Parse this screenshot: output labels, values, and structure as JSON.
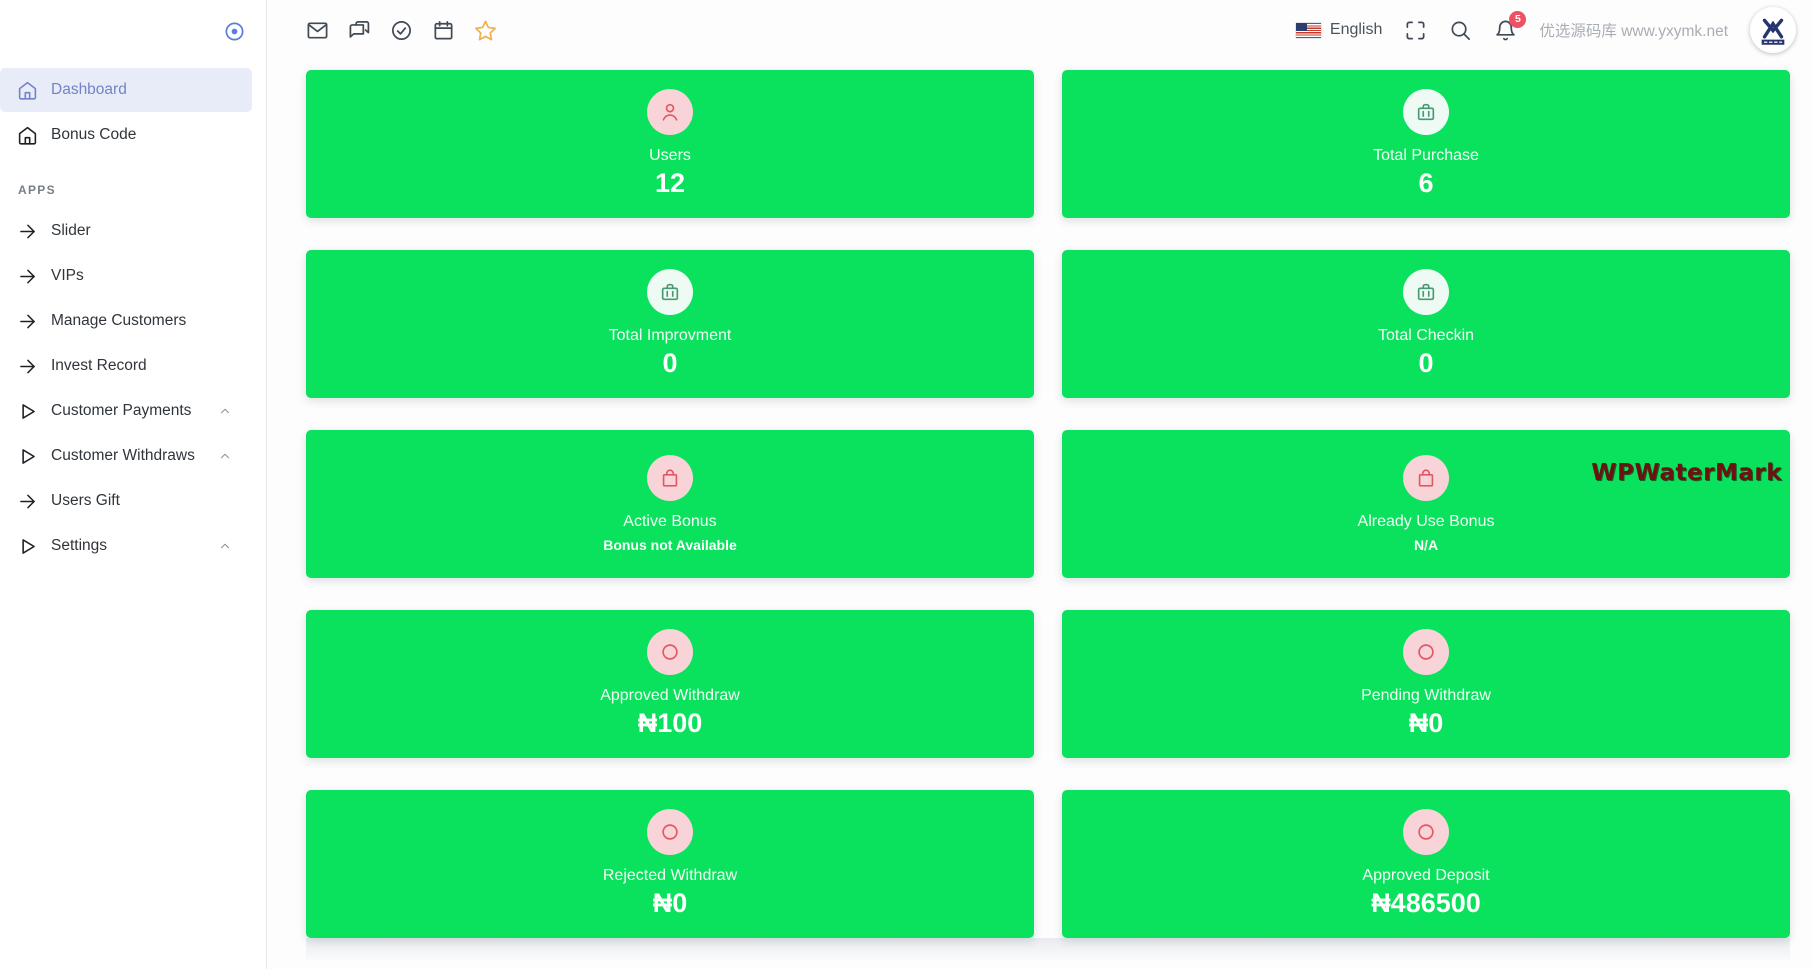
{
  "sidebar": {
    "toggle_icon": "circle-dot-icon",
    "items": [
      {
        "type": "link",
        "label": "Dashboard",
        "icon": "home",
        "active": true
      },
      {
        "type": "link",
        "label": "Bonus Code",
        "icon": "home"
      },
      {
        "type": "section",
        "label": "APPS"
      },
      {
        "type": "link",
        "label": "Slider",
        "icon": "arrow-right"
      },
      {
        "type": "link",
        "label": "VIPs",
        "icon": "arrow-right"
      },
      {
        "type": "link",
        "label": "Manage Customers",
        "icon": "arrow-right"
      },
      {
        "type": "link",
        "label": "Invest Record",
        "icon": "arrow-right"
      },
      {
        "type": "link",
        "label": "Customer Payments",
        "icon": "play",
        "chevron": true
      },
      {
        "type": "link",
        "label": "Customer Withdraws",
        "icon": "play",
        "chevron": true
      },
      {
        "type": "link",
        "label": "Users Gift",
        "icon": "arrow-right"
      },
      {
        "type": "link",
        "label": "Settings",
        "icon": "play",
        "chevron": true
      }
    ]
  },
  "header": {
    "left_icons": [
      {
        "name": "mail-icon"
      },
      {
        "name": "chat-icon"
      },
      {
        "name": "check-circle-icon"
      },
      {
        "name": "calendar-icon"
      },
      {
        "name": "star-icon",
        "accent": "orange"
      }
    ],
    "language": {
      "label": "English",
      "flag": "us-flag-icon"
    },
    "right_icons": [
      {
        "name": "fullscreen-icon"
      },
      {
        "name": "search-icon"
      },
      {
        "name": "bell-icon",
        "badge": true
      }
    ],
    "notification_count": "5",
    "site_note": "优选源码库 www.yxymk.net",
    "avatar_logo": "yx-logo"
  },
  "cards": [
    {
      "label": "Users",
      "value": "12",
      "icon": "user",
      "theme": "pink"
    },
    {
      "label": "Total Purchase",
      "value": "6",
      "icon": "briefcase",
      "theme": "mint"
    },
    {
      "label": "Total Improvment",
      "value": "0",
      "icon": "briefcase",
      "theme": "mint"
    },
    {
      "label": "Total Checkin",
      "value": "0",
      "icon": "briefcase",
      "theme": "mint"
    },
    {
      "label": "Active Bonus",
      "value": "Bonus not Available",
      "icon": "shopping-bag",
      "theme": "pink",
      "small_value": true
    },
    {
      "label": "Already Use Bonus",
      "value": "N/A",
      "icon": "shopping-bag",
      "theme": "pink",
      "small_value": true
    },
    {
      "label": "Approved Withdraw",
      "value": "₦100",
      "icon": "circle",
      "theme": "pink"
    },
    {
      "label": "Pending Withdraw",
      "value": "₦0",
      "icon": "circle",
      "theme": "pink"
    },
    {
      "label": "Rejected Withdraw",
      "value": "₦0",
      "icon": "circle",
      "theme": "pink"
    },
    {
      "label": "Approved Deposit",
      "value": "₦486500",
      "icon": "circle",
      "theme": "pink"
    }
  ],
  "watermark": "WPWaterMark",
  "colors": {
    "card_green": "#0ae15c",
    "active_blue": "#7384c6",
    "active_bg": "#e7ecf8",
    "icon_red": "#e25764",
    "icon_red_bg": "#f8d4d8",
    "icon_green": "#4a9873",
    "icon_green_bg": "#eefbf4",
    "badge_red": "#ef5064",
    "star_orange": "#f0b14c",
    "watermark_red": "#6d1111"
  }
}
